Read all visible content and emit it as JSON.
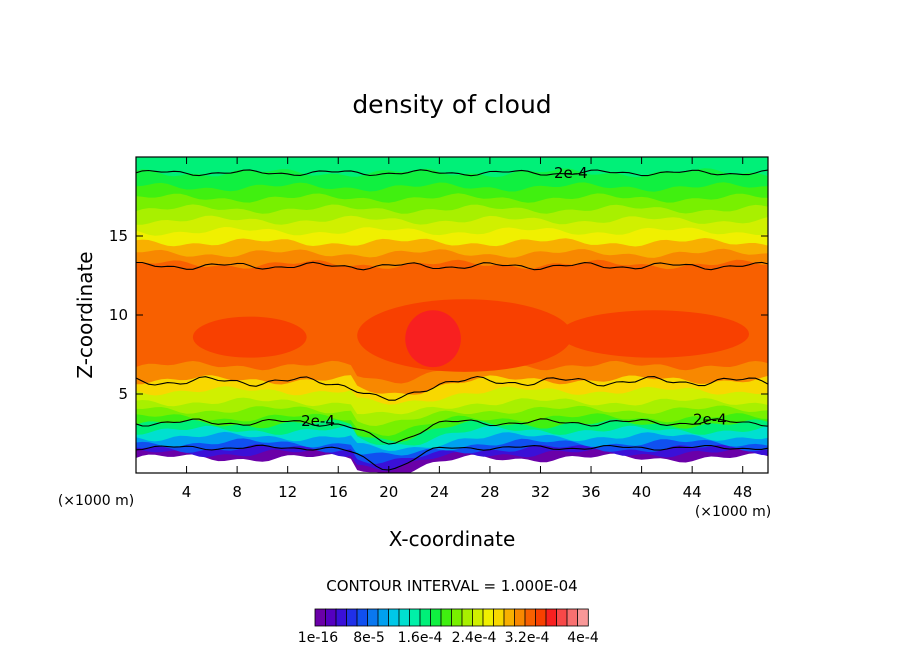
{
  "chart_data": {
    "type": "heatmap",
    "title": "density of cloud",
    "xlabel": "X-coordinate",
    "ylabel": "Z-coordinate",
    "x_unit": "(×1000 m)",
    "y_unit": "(×1000 m)",
    "x_ticks": [
      4,
      8,
      12,
      16,
      20,
      24,
      28,
      32,
      36,
      40,
      44,
      48
    ],
    "y_ticks": [
      5,
      10,
      15
    ],
    "xlim": [
      0,
      50
    ],
    "ylim": [
      0,
      20
    ],
    "contour_interval_text": "CONTOUR INTERVAL = 1.000E-04",
    "contour_labels": [
      {
        "text": "2e-4",
        "x": 34.4,
        "z": 19.0
      },
      {
        "text": "2e-4",
        "x": 14.4,
        "z": 3.3
      },
      {
        "text": "2e-4",
        "x": 45.4,
        "z": 3.4
      }
    ],
    "value_range": [
      1e-16,
      0.0004
    ],
    "colorbar_tick_labels": [
      "1e-16",
      "8e-5",
      "1.6e-4",
      "2.4e-4",
      "3.2e-4",
      "4e-4"
    ],
    "colorbar_colors": [
      "#6a00a8",
      "#5500c0",
      "#3a10d8",
      "#2030e8",
      "#1050f0",
      "#0a78f0",
      "#00a0f0",
      "#00c8e8",
      "#00e0d0",
      "#00f0a8",
      "#00f078",
      "#10f040",
      "#40f010",
      "#78f000",
      "#a8f000",
      "#d0f000",
      "#f0f000",
      "#f8d800",
      "#f8b000",
      "#f88800",
      "#f86000",
      "#f84000",
      "#f82020",
      "#f84848",
      "#f87070",
      "#f89898"
    ]
  }
}
